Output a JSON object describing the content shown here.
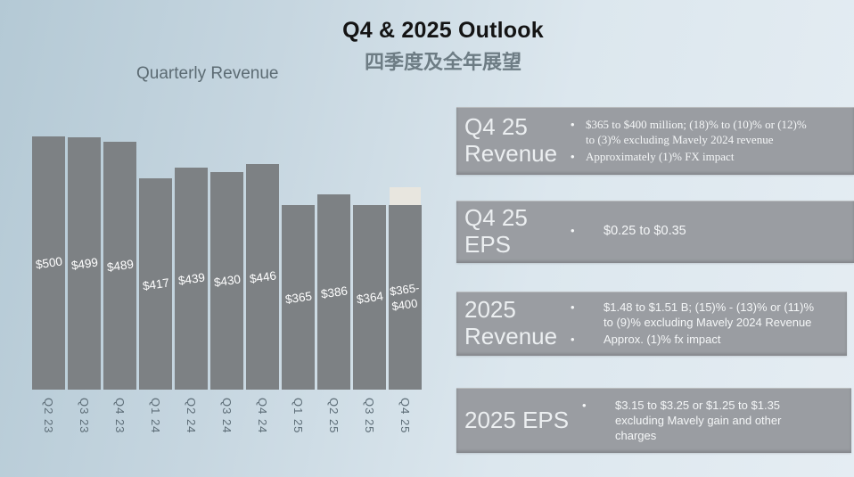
{
  "slide": {
    "title": "Q4 & 2025 Outlook",
    "subtitle_zh": "四季度及全年展望"
  },
  "chart_data": {
    "type": "bar",
    "title": "Quarterly Revenue",
    "categories": [
      "Q2 23",
      "Q3 23",
      "Q4 23",
      "Q1 24",
      "Q2 24",
      "Q3 24",
      "Q4 24",
      "Q1 25",
      "Q2 25",
      "Q3 25",
      "Q4 25"
    ],
    "values": [
      500,
      499,
      489,
      417,
      439,
      430,
      446,
      365,
      386,
      364,
      365
    ],
    "bar_labels": [
      "$500",
      "$499",
      "$489",
      "$417",
      "$439",
      "$430",
      "$446",
      "$365",
      "$386",
      "$364",
      "$365-\n$400"
    ],
    "final_bar_range": {
      "low": 365,
      "high": 400,
      "label": "$365-\n$400"
    },
    "ylim": [
      0,
      500
    ],
    "grid": false,
    "legend": false,
    "colors": {
      "bar": "#7d8184",
      "range_segment": "#e8e6df",
      "label_text": "#ffffff"
    }
  },
  "outlook_boxes": [
    {
      "heading": "Q4 25\nRevenue",
      "bullets": [
        "$365 to $400 million; (18)% to (10)% or (12)%\nto (3)% excluding Mavely 2024 revenue",
        "Approximately (1)% FX impact"
      ]
    },
    {
      "heading": "Q4 25\nEPS",
      "bullets": [
        "$0.25 to $0.35"
      ]
    },
    {
      "heading": "2025\nRevenue",
      "bullets": [
        "$1.48 to $1.51 B; (15)% - (13)% or (11)%\nto (9)% excluding Mavely 2024 Revenue",
        "Approx. (1)% fx impact"
      ]
    },
    {
      "heading": "2025 EPS",
      "bullets": [
        "$3.15 to $3.25 or $1.25 to $1.35\nexcluding Mavely gain and other\ncharges"
      ]
    }
  ],
  "colors": {
    "background_left": "#b4c9d5",
    "background_right": "#e5edf3",
    "box_background": "#9a9da2",
    "title_text": "#141414",
    "subtitle_text": "#6d7c84",
    "chart_title_text": "#5c6b73",
    "axis_label_text": "#5d6d77"
  }
}
